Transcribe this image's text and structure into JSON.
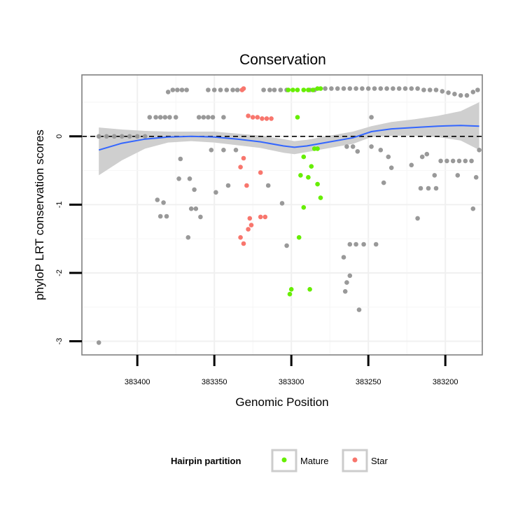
{
  "chart_data": {
    "type": "scatter",
    "title": "Conservation",
    "xlabel": "Genomic Position",
    "ylabel": "phyloP LRT conservation scores",
    "x_axis_reversed": true,
    "xlim": [
      383176,
      383436
    ],
    "ylim": [
      -3.2,
      0.9
    ],
    "x_ticks": [
      383400,
      383350,
      383300,
      383250,
      383200
    ],
    "x_tick_labels": [
      "383400",
      "383350",
      "383300",
      "383250",
      "383200"
    ],
    "y_ticks": [
      0,
      -1,
      -2,
      -3
    ],
    "y_tick_labels": [
      "0",
      "-1",
      "-2",
      "-3"
    ],
    "grid": true,
    "reference_line": {
      "y": 0,
      "style": "dashed",
      "color": "#000000"
    },
    "legend": {
      "title": "Hairpin partition",
      "position": "bottom",
      "entries": [
        {
          "label": "Mature",
          "color": "#66ee00"
        },
        {
          "label": "Star",
          "color": "#f8766d"
        }
      ]
    },
    "series": [
      {
        "key": "other",
        "color": "#999999",
        "points": [
          [
            383425,
            -3.02
          ],
          [
            383425,
            0
          ],
          [
            383420,
            0
          ],
          [
            383415,
            0
          ],
          [
            383410,
            0
          ],
          [
            383405,
            0
          ],
          [
            383400,
            0
          ],
          [
            383395,
            0
          ],
          [
            383392,
            0.28
          ],
          [
            383388,
            0.28
          ],
          [
            383385,
            0.28
          ],
          [
            383382,
            0.28
          ],
          [
            383379,
            0.28
          ],
          [
            383375,
            0.28
          ],
          [
            383380,
            0.65
          ],
          [
            383377,
            0.68
          ],
          [
            383374,
            0.68
          ],
          [
            383371,
            0.68
          ],
          [
            383368,
            0.68
          ],
          [
            383387,
            -0.93
          ],
          [
            383383,
            -0.97
          ],
          [
            383385,
            -1.17
          ],
          [
            383381,
            -1.17
          ],
          [
            383372,
            -0.33
          ],
          [
            383373,
            -0.62
          ],
          [
            383366,
            -0.62
          ],
          [
            383363,
            -0.78
          ],
          [
            383365,
            -1.06
          ],
          [
            383362,
            -1.06
          ],
          [
            383367,
            -1.48
          ],
          [
            383359,
            -1.18
          ],
          [
            383360,
            0.28
          ],
          [
            383357,
            0.28
          ],
          [
            383354,
            0.28
          ],
          [
            383351,
            0.28
          ],
          [
            383344,
            0.28
          ],
          [
            383354,
            0.68
          ],
          [
            383350,
            0.68
          ],
          [
            383346,
            0.68
          ],
          [
            383342,
            0.68
          ],
          [
            383338,
            0.68
          ],
          [
            383335,
            0.68
          ],
          [
            383352,
            -0.2
          ],
          [
            383344,
            -0.2
          ],
          [
            383336,
            -0.2
          ],
          [
            383349,
            -0.82
          ],
          [
            383341,
            -0.72
          ],
          [
            383303,
            -1.6
          ],
          [
            383306,
            -0.98
          ],
          [
            383315,
            -0.72
          ],
          [
            383318,
            0.68
          ],
          [
            383314,
            0.68
          ],
          [
            383311,
            0.68
          ],
          [
            383307,
            0.68
          ],
          [
            383303,
            0.68
          ],
          [
            383288,
            0.68
          ],
          [
            383285,
            0.68
          ],
          [
            383278,
            0.7
          ],
          [
            383274,
            0.7
          ],
          [
            383270,
            0.7
          ],
          [
            383266,
            0.7
          ],
          [
            383262,
            0.7
          ],
          [
            383258,
            0.7
          ],
          [
            383254,
            0.7
          ],
          [
            383250,
            0.7
          ],
          [
            383246,
            0.7
          ],
          [
            383242,
            0.7
          ],
          [
            383238,
            0.7
          ],
          [
            383234,
            0.7
          ],
          [
            383230,
            0.7
          ],
          [
            383226,
            0.7
          ],
          [
            383222,
            0.7
          ],
          [
            383218,
            0.7
          ],
          [
            383214,
            0.68
          ],
          [
            383210,
            0.68
          ],
          [
            383206,
            0.68
          ],
          [
            383202,
            0.66
          ],
          [
            383198,
            0.64
          ],
          [
            383194,
            0.62
          ],
          [
            383190,
            0.6
          ],
          [
            383186,
            0.6
          ],
          [
            383182,
            0.65
          ],
          [
            383179,
            0.68
          ],
          [
            383264,
            -0.15
          ],
          [
            383260,
            -0.15
          ],
          [
            383257,
            -0.22
          ],
          [
            383248,
            -0.15
          ],
          [
            383237,
            -0.3
          ],
          [
            383242,
            -0.2
          ],
          [
            383235,
            -0.46
          ],
          [
            383222,
            -0.42
          ],
          [
            383240,
            -0.68
          ],
          [
            383215,
            -0.3
          ],
          [
            383212,
            -0.26
          ],
          [
            383203,
            -0.36
          ],
          [
            383199,
            -0.36
          ],
          [
            383195,
            -0.36
          ],
          [
            383191,
            -0.36
          ],
          [
            383187,
            -0.36
          ],
          [
            383183,
            -0.36
          ],
          [
            383207,
            -0.57
          ],
          [
            383192,
            -0.57
          ],
          [
            383216,
            -0.76
          ],
          [
            383211,
            -0.76
          ],
          [
            383206,
            -0.76
          ],
          [
            383218,
            -1.2
          ],
          [
            383182,
            -1.06
          ],
          [
            383180,
            -0.6
          ],
          [
            383178,
            -0.2
          ],
          [
            383266,
            -1.77
          ],
          [
            383264,
            -2.14
          ],
          [
            383262,
            -2.04
          ],
          [
            383265,
            -2.27
          ],
          [
            383256,
            -2.54
          ],
          [
            383262,
            -1.58
          ],
          [
            383258,
            -1.58
          ],
          [
            383253,
            -1.58
          ],
          [
            383245,
            -1.58
          ],
          [
            383248,
            0.28
          ]
        ]
      },
      {
        "key": "mature",
        "name": "Mature",
        "color": "#66ee00",
        "points": [
          [
            383302,
            0.68
          ],
          [
            383299,
            0.68
          ],
          [
            383296,
            0.68
          ],
          [
            383292,
            0.68
          ],
          [
            383289,
            0.68
          ],
          [
            383286,
            0.68
          ],
          [
            383283,
            0.7
          ],
          [
            383281,
            0.7
          ],
          [
            383296,
            0.28
          ],
          [
            383292,
            -0.3
          ],
          [
            383294,
            -0.57
          ],
          [
            383289,
            -0.6
          ],
          [
            383287,
            -0.44
          ],
          [
            383283,
            -0.7
          ],
          [
            383281,
            -0.9
          ],
          [
            383285,
            -0.18
          ],
          [
            383283,
            -0.18
          ],
          [
            383292,
            -1.04
          ],
          [
            383295,
            -1.48
          ],
          [
            383300,
            -2.24
          ],
          [
            383301,
            -2.31
          ],
          [
            383288,
            -2.24
          ]
        ]
      },
      {
        "key": "star",
        "name": "Star",
        "color": "#f8766d",
        "points": [
          [
            383332,
            0.68
          ],
          [
            383331,
            0.7
          ],
          [
            383328,
            0.3
          ],
          [
            383325,
            0.28
          ],
          [
            383322,
            0.28
          ],
          [
            383319,
            0.26
          ],
          [
            383316,
            0.26
          ],
          [
            383313,
            0.26
          ],
          [
            383331,
            -0.32
          ],
          [
            383333,
            -0.45
          ],
          [
            383329,
            -0.72
          ],
          [
            383320,
            -0.53
          ],
          [
            383320,
            -1.18
          ],
          [
            383317,
            -1.18
          ],
          [
            383327,
            -1.2
          ],
          [
            383326,
            -1.3
          ],
          [
            383328,
            -1.36
          ],
          [
            383333,
            -1.48
          ],
          [
            383331,
            -1.57
          ]
        ]
      }
    ],
    "smooth_line": {
      "color": "#3366ff",
      "points": [
        [
          383425,
          -0.2
        ],
        [
          383410,
          -0.1
        ],
        [
          383395,
          -0.04
        ],
        [
          383380,
          -0.01
        ],
        [
          383365,
          0.0
        ],
        [
          383350,
          -0.01
        ],
        [
          383335,
          -0.04
        ],
        [
          383320,
          -0.08
        ],
        [
          383305,
          -0.14
        ],
        [
          383298,
          -0.16
        ],
        [
          383290,
          -0.14
        ],
        [
          383275,
          -0.08
        ],
        [
          383260,
          -0.02
        ],
        [
          383248,
          0.07
        ],
        [
          383235,
          0.11
        ],
        [
          383220,
          0.13
        ],
        [
          383205,
          0.15
        ],
        [
          383190,
          0.16
        ],
        [
          383178,
          0.15
        ]
      ]
    },
    "confidence_band": {
      "color": "#cccccc",
      "upper": [
        [
          383425,
          0.13
        ],
        [
          383410,
          0.1
        ],
        [
          383395,
          0.08
        ],
        [
          383380,
          0.07
        ],
        [
          383365,
          0.07
        ],
        [
          383350,
          0.07
        ],
        [
          383335,
          0.04
        ],
        [
          383320,
          0.01
        ],
        [
          383305,
          -0.04
        ],
        [
          383298,
          -0.07
        ],
        [
          383290,
          -0.05
        ],
        [
          383275,
          0.01
        ],
        [
          383260,
          0.07
        ],
        [
          383248,
          0.15
        ],
        [
          383235,
          0.21
        ],
        [
          383220,
          0.25
        ],
        [
          383205,
          0.3
        ],
        [
          383190,
          0.37
        ],
        [
          383178,
          0.5
        ]
      ],
      "lower": [
        [
          383425,
          -0.57
        ],
        [
          383410,
          -0.35
        ],
        [
          383395,
          -0.18
        ],
        [
          383380,
          -0.09
        ],
        [
          383365,
          -0.07
        ],
        [
          383350,
          -0.09
        ],
        [
          383335,
          -0.13
        ],
        [
          383320,
          -0.17
        ],
        [
          383305,
          -0.24
        ],
        [
          383298,
          -0.26
        ],
        [
          383290,
          -0.23
        ],
        [
          383275,
          -0.17
        ],
        [
          383260,
          -0.11
        ],
        [
          383248,
          -0.01
        ],
        [
          383235,
          0.01
        ],
        [
          383220,
          0.01
        ],
        [
          383205,
          -0.01
        ],
        [
          383190,
          -0.06
        ],
        [
          383178,
          -0.2
        ]
      ]
    }
  }
}
